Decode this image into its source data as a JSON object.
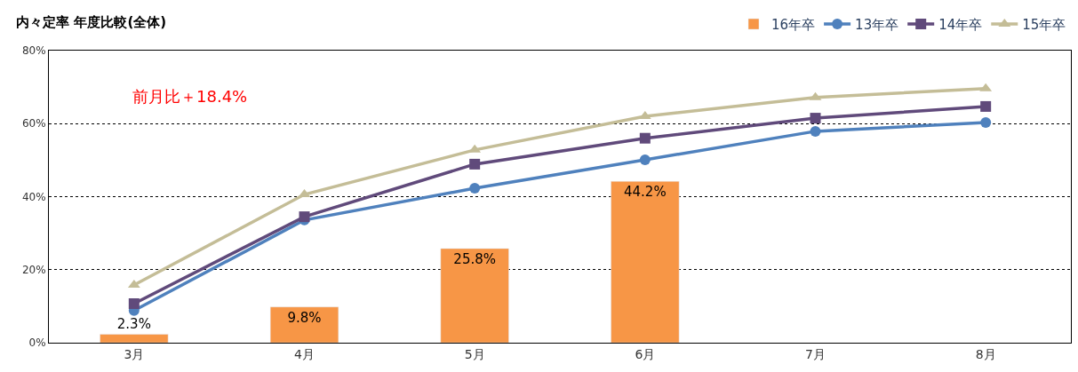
{
  "chart_data": {
    "type": "bar",
    "title": "内々定率 年度比較(全体)",
    "categories": [
      "3月",
      "4月",
      "5月",
      "6月",
      "7月",
      "8月"
    ],
    "series": [
      {
        "name": "16年卒",
        "color": "#f79646",
        "values": [
          2.3,
          9.8,
          25.8,
          44.2,
          null,
          null
        ],
        "value_labels": [
          "2.3%",
          "9.8%",
          "25.8%",
          "44.2%",
          null,
          null
        ]
      },
      {
        "name": "13年卒",
        "type": "line",
        "color": "#4f81bd",
        "marker": "circle",
        "values": [
          8.8,
          33.6,
          42.3,
          50.1,
          57.9,
          60.3
        ]
      },
      {
        "name": "14年卒",
        "type": "line",
        "color": "#604a7b",
        "marker": "square",
        "values": [
          10.7,
          34.5,
          48.9,
          56.0,
          61.5,
          64.7
        ]
      },
      {
        "name": "15年卒",
        "type": "line",
        "color": "#c4bd97",
        "marker": "triangle",
        "values": [
          15.8,
          40.6,
          52.8,
          62.0,
          67.2,
          69.6
        ]
      }
    ],
    "ylim": [
      0,
      80
    ],
    "yticks": [
      {
        "value": 0,
        "label": "0%"
      },
      {
        "value": 20,
        "label": "20%"
      },
      {
        "value": 40,
        "label": "40%"
      },
      {
        "value": 60,
        "label": "60%"
      },
      {
        "value": 80,
        "label": "80%"
      }
    ],
    "grid": "y",
    "legend": "top right",
    "annotations": [
      "前月比＋18.4%"
    ]
  }
}
